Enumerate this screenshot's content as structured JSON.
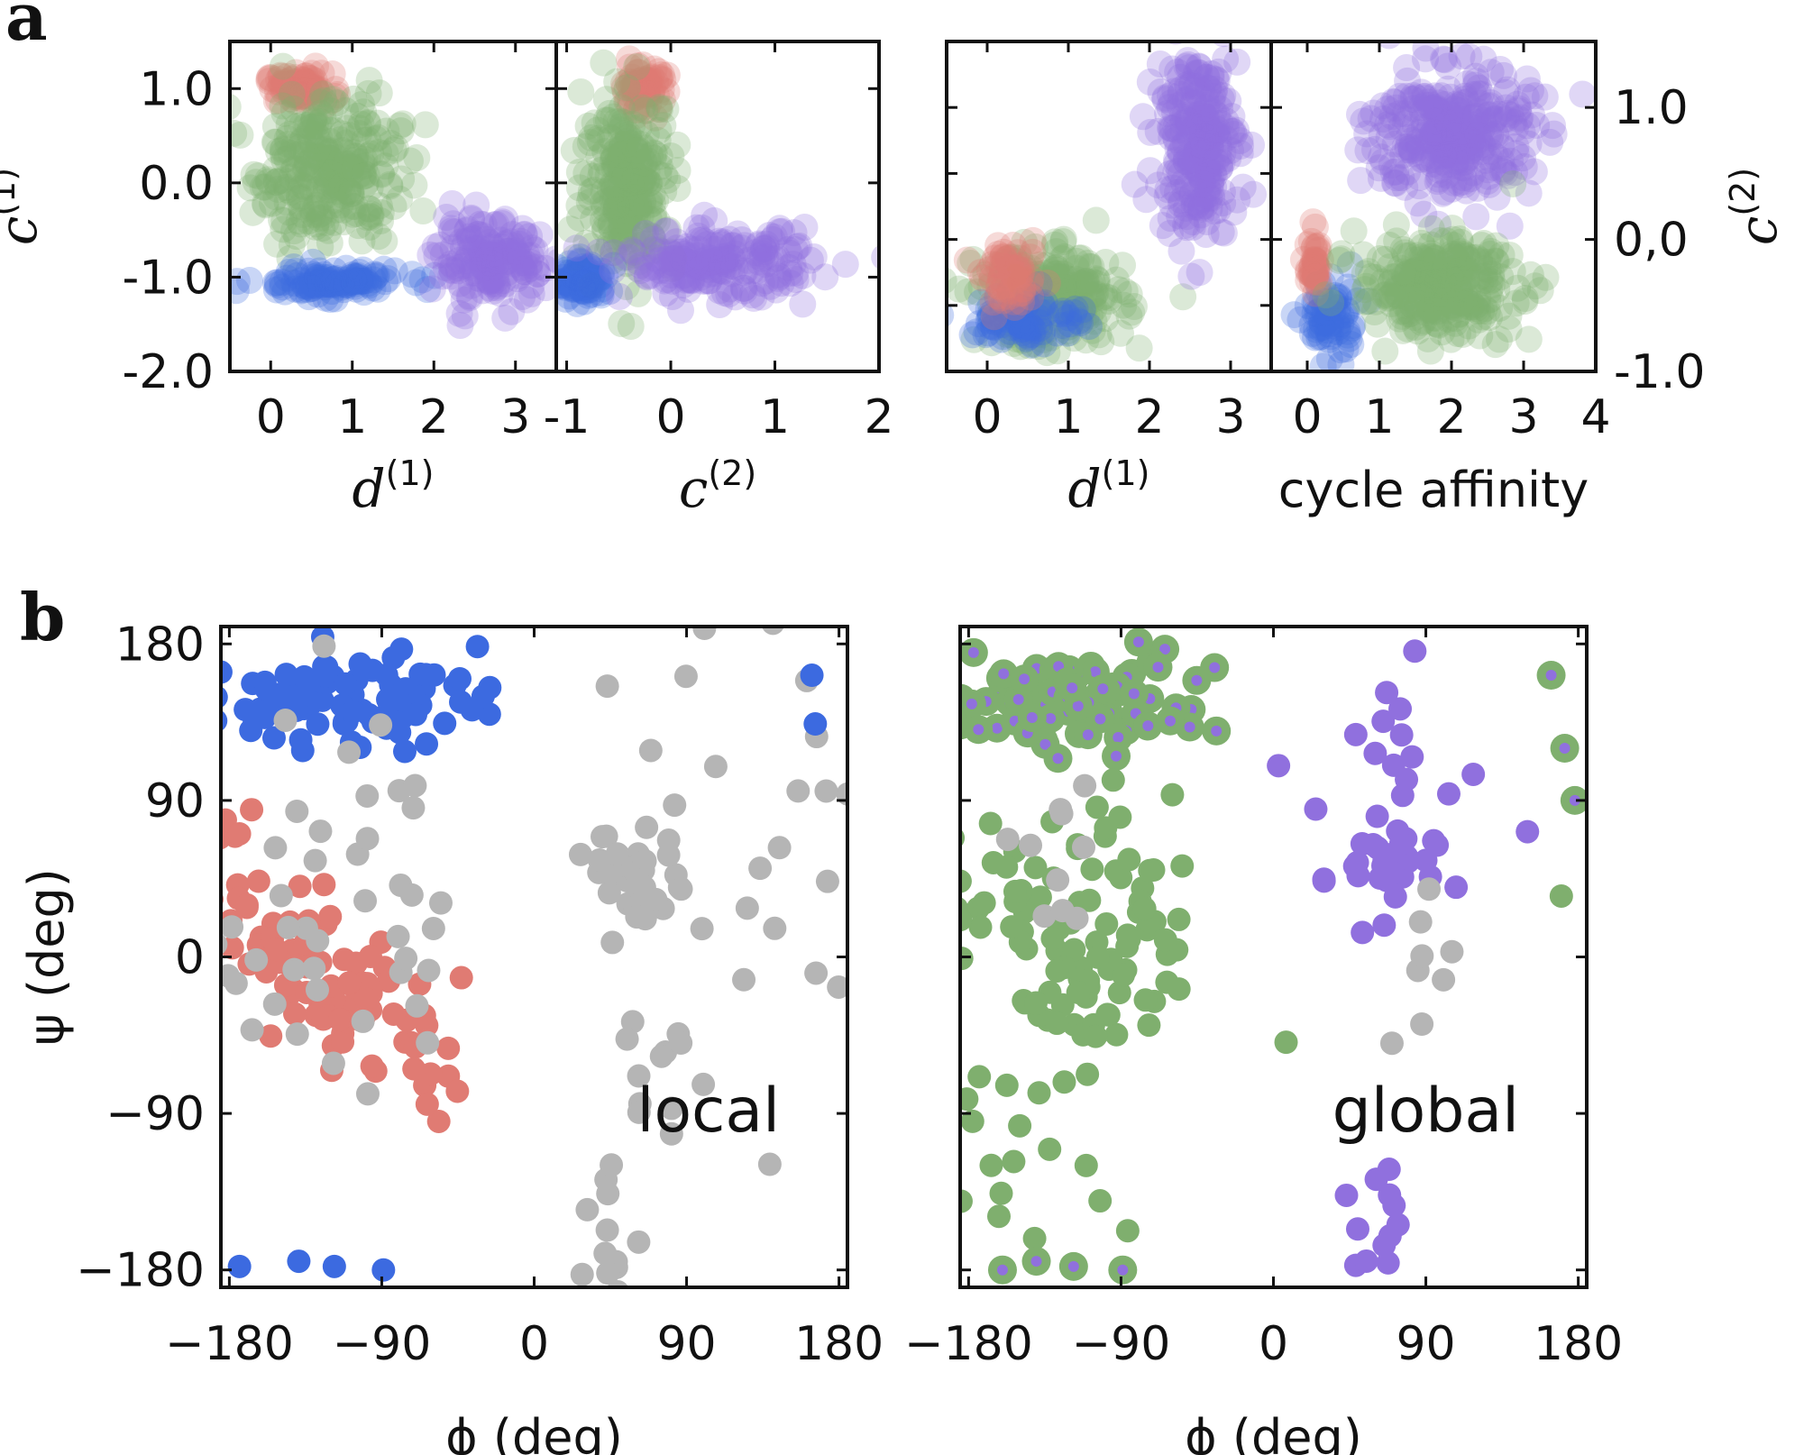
{
  "panel_labels": {
    "a": "a",
    "b": "b"
  },
  "colors": {
    "red": "#E07B73",
    "green": "#7FAF6E",
    "blue": "#3C6AE0",
    "purple": "#9070DE",
    "gray": "#B5B5B5",
    "darkgray": "#8A8A8A"
  },
  "chart_data": [
    {
      "id": "a1",
      "type": "scatter",
      "title": "",
      "xlabel": "d",
      "xlabel_sup": "(1)",
      "ylabel": "c",
      "ylabel_sup": "(1)",
      "xlim": [
        -0.5,
        3.5
      ],
      "ylim": [
        -2.0,
        1.5
      ],
      "xticks": [
        0,
        1,
        2,
        3
      ],
      "xtick_labels": [
        "0",
        "1",
        "2",
        "3"
      ],
      "yticks": [
        1.0,
        0.0,
        -1.0,
        -2.0
      ],
      "ytick_labels": [
        "1.0",
        "0.0",
        "-1.0",
        "-2.0"
      ],
      "clusters": [
        {
          "name": "red",
          "color": "red",
          "cx": 0.35,
          "cy": 1.0,
          "sx": 0.2,
          "sy": 0.08,
          "n": 90
        },
        {
          "name": "green",
          "color": "green",
          "cx": 0.7,
          "cy": 0.15,
          "sx": 0.45,
          "sy": 0.4,
          "n": 280
        },
        {
          "name": "blue",
          "color": "blue",
          "cx": 0.7,
          "cy": -1.05,
          "sx": 0.45,
          "sy": 0.07,
          "n": 120
        },
        {
          "name": "purple",
          "color": "purple",
          "cx": 2.7,
          "cy": -0.85,
          "sx": 0.32,
          "sy": 0.22,
          "n": 170
        }
      ]
    },
    {
      "id": "a2",
      "type": "scatter",
      "title": "",
      "xlabel": "c",
      "xlabel_sup": "(2)",
      "ylabel": "",
      "xlim": [
        -1.1,
        2.0
      ],
      "ylim": [
        -2.0,
        1.5
      ],
      "xticks": [
        -1,
        0,
        1,
        2
      ],
      "xtick_labels": [
        "-1",
        "0",
        "1",
        "2"
      ],
      "yticks": [
        1.0,
        0.0,
        -1.0,
        -2.0
      ],
      "ytick_labels": [],
      "clusters": [
        {
          "name": "red",
          "color": "red",
          "cx": -0.28,
          "cy": 1.0,
          "sx": 0.12,
          "sy": 0.12,
          "n": 70
        },
        {
          "name": "green",
          "color": "green",
          "cx": -0.4,
          "cy": 0.0,
          "sx": 0.22,
          "sy": 0.45,
          "n": 260
        },
        {
          "name": "blue",
          "color": "blue",
          "cx": -0.85,
          "cy": -1.05,
          "sx": 0.12,
          "sy": 0.1,
          "n": 100
        },
        {
          "name": "purple",
          "color": "purple",
          "cx": 0.45,
          "cy": -0.85,
          "sx": 0.45,
          "sy": 0.18,
          "n": 200
        }
      ]
    },
    {
      "id": "a3",
      "type": "scatter",
      "title": "",
      "xlabel": "d",
      "xlabel_sup": "(1)",
      "ylabel": "",
      "xlim": [
        -0.5,
        3.5
      ],
      "ylim": [
        -1.0,
        1.5
      ],
      "xticks": [
        0,
        1,
        2,
        3
      ],
      "xtick_labels": [
        "0",
        "1",
        "2",
        "3"
      ],
      "yticks": [
        1.0,
        0.5,
        0.0,
        -0.5
      ],
      "ytick_labels": [],
      "clusters": [
        {
          "name": "green",
          "color": "green",
          "cx": 0.8,
          "cy": -0.45,
          "sx": 0.45,
          "sy": 0.18,
          "n": 260
        },
        {
          "name": "blue",
          "color": "blue",
          "cx": 0.5,
          "cy": -0.6,
          "sx": 0.35,
          "sy": 0.1,
          "n": 80
        },
        {
          "name": "red",
          "color": "red",
          "cx": 0.3,
          "cy": -0.3,
          "sx": 0.18,
          "sy": 0.12,
          "n": 60
        },
        {
          "name": "purple",
          "color": "purple",
          "cx": 2.6,
          "cy": 0.75,
          "sx": 0.25,
          "sy": 0.35,
          "n": 260
        }
      ]
    },
    {
      "id": "a4",
      "type": "scatter",
      "title": "",
      "xlabel": "cycle affinity",
      "ylabel": "c",
      "ylabel_sup": "(2)",
      "ylabel_side": "right",
      "xlim": [
        -0.5,
        4.0
      ],
      "ylim": [
        -1.0,
        1.5
      ],
      "xticks": [
        0,
        1,
        2,
        3,
        4
      ],
      "xtick_labels": [
        "0",
        "1",
        "2",
        "3",
        "4"
      ],
      "yticks": [
        1.0,
        0.0,
        -1.0
      ],
      "ytick_labels": [
        "1.0",
        "0,0",
        "-1.0"
      ],
      "clusters": [
        {
          "name": "purple",
          "color": "purple",
          "cx": 2.0,
          "cy": 0.8,
          "sx": 0.55,
          "sy": 0.25,
          "n": 320
        },
        {
          "name": "blue",
          "color": "blue",
          "cx": 0.3,
          "cy": -0.6,
          "sx": 0.2,
          "sy": 0.15,
          "n": 70
        },
        {
          "name": "red",
          "color": "red",
          "cx": 0.1,
          "cy": -0.2,
          "sx": 0.05,
          "sy": 0.13,
          "n": 40
        },
        {
          "name": "green",
          "color": "green",
          "cx": 1.8,
          "cy": -0.35,
          "sx": 0.55,
          "sy": 0.18,
          "n": 300
        }
      ]
    },
    {
      "id": "b1",
      "type": "scatter",
      "title": "",
      "annotation": "local",
      "xlabel": "ϕ (deg)",
      "ylabel": "ψ (deg)",
      "xlim": [
        -185,
        185
      ],
      "ylim": [
        -190,
        190
      ],
      "xticks": [
        -180,
        -90,
        0,
        90,
        180
      ],
      "xtick_labels": [
        "−180",
        "−90",
        "0",
        "90",
        "180"
      ],
      "yticks": [
        180,
        90,
        0,
        -90,
        -180
      ],
      "ytick_labels": [
        "180",
        "90",
        "0",
        "−90",
        "−180"
      ],
      "clusters": [
        {
          "name": "blue-beta",
          "color": "blue",
          "cx": -115,
          "cy": 148,
          "sx": 40,
          "sy": 14,
          "n": 90
        },
        {
          "name": "red-alpha",
          "color": "red",
          "cx": -120,
          "cy": -10,
          "sx": 40,
          "sy": 25,
          "n": 95,
          "tilt": -0.8
        },
        {
          "name": "gray-left",
          "color": "gray",
          "cx": -120,
          "cy": 30,
          "sx": 35,
          "sy": 60,
          "n": 45
        },
        {
          "name": "gray-cluster",
          "color": "gray",
          "cx": 60,
          "cy": 50,
          "sx": 13,
          "sy": 13,
          "n": 25
        },
        {
          "name": "gray-mid",
          "color": "gray",
          "cx": 80,
          "cy": 20,
          "sx": 25,
          "sy": 80,
          "n": 35
        },
        {
          "name": "gray-bottom",
          "color": "gray",
          "cx": 45,
          "cy": -160,
          "sx": 12,
          "sy": 20,
          "n": 12
        },
        {
          "name": "gray-right",
          "color": "gray",
          "cx": 160,
          "cy": 60,
          "sx": 20,
          "sy": 70,
          "n": 12
        }
      ],
      "points": [
        {
          "x": -174,
          "y": -178,
          "color": "blue"
        },
        {
          "x": -139,
          "y": -175,
          "color": "blue"
        },
        {
          "x": -118,
          "y": -178,
          "color": "blue"
        },
        {
          "x": -89,
          "y": -180,
          "color": "blue"
        },
        {
          "x": 164,
          "y": 162,
          "color": "blue"
        },
        {
          "x": 166,
          "y": 134,
          "color": "blue"
        }
      ]
    },
    {
      "id": "b2",
      "type": "scatter",
      "title": "",
      "annotation": "global",
      "xlabel": "ϕ (deg)",
      "ylabel": "",
      "xlim": [
        -185,
        185
      ],
      "ylim": [
        -190,
        190
      ],
      "xticks": [
        -180,
        -90,
        0,
        90,
        180
      ],
      "xtick_labels": [
        "−180",
        "−90",
        "0",
        "90",
        "180"
      ],
      "yticks": [
        180,
        90,
        0,
        -90,
        -180
      ],
      "ytick_labels": [],
      "clusters": [
        {
          "name": "green-top",
          "color": "green",
          "cx": -115,
          "cy": 148,
          "sx": 42,
          "sy": 14,
          "n": 90,
          "ring_purple": true
        },
        {
          "name": "green-alpha",
          "color": "green",
          "cx": -120,
          "cy": 5,
          "sx": 42,
          "sy": 40,
          "n": 110
        },
        {
          "name": "green-low",
          "color": "green",
          "cx": -140,
          "cy": -120,
          "sx": 25,
          "sy": 35,
          "n": 14
        },
        {
          "name": "gray-left",
          "color": "gray",
          "cx": -130,
          "cy": 60,
          "sx": 20,
          "sy": 30,
          "n": 10
        },
        {
          "name": "purple-cluster",
          "color": "purple",
          "cx": 65,
          "cy": 45,
          "sx": 15,
          "sy": 18,
          "n": 30
        },
        {
          "name": "purple-top",
          "color": "purple",
          "cx": 70,
          "cy": 130,
          "sx": 12,
          "sy": 35,
          "n": 14
        },
        {
          "name": "purple-bottom",
          "color": "purple",
          "cx": 55,
          "cy": -160,
          "sx": 10,
          "sy": 18,
          "n": 12
        },
        {
          "name": "gray-mid",
          "color": "gray",
          "cx": 90,
          "cy": -30,
          "sx": 15,
          "sy": 40,
          "n": 8
        }
      ],
      "points": [
        {
          "x": -160,
          "y": -180,
          "color": "green",
          "ring": true
        },
        {
          "x": -140,
          "y": -175,
          "color": "green",
          "ring": true
        },
        {
          "x": -118,
          "y": -178,
          "color": "green",
          "ring": true
        },
        {
          "x": -89,
          "y": -180,
          "color": "green",
          "ring": true
        },
        {
          "x": 164,
          "y": 162,
          "color": "green",
          "ring": true
        },
        {
          "x": 172,
          "y": 120,
          "color": "green",
          "ring": true
        },
        {
          "x": 178,
          "y": 90,
          "color": "green",
          "ring": true
        },
        {
          "x": 170,
          "y": 35,
          "color": "green"
        },
        {
          "x": 150,
          "y": 72,
          "color": "purple"
        },
        {
          "x": 118,
          "y": 105,
          "color": "purple"
        },
        {
          "x": 3,
          "y": 110,
          "color": "purple"
        },
        {
          "x": 25,
          "y": 85,
          "color": "purple"
        }
      ]
    }
  ]
}
